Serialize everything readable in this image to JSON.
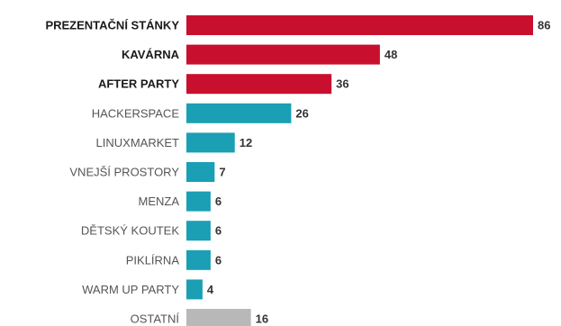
{
  "chart_data": {
    "type": "bar",
    "orientation": "horizontal",
    "title": "",
    "xlabel": "",
    "ylabel": "",
    "grid": false,
    "legend": "none",
    "xlim": [
      0,
      86
    ],
    "categories": [
      "PREZENTAČNÍ STÁNKY",
      "KAVÁRNA",
      "AFTER PARTY",
      "HACKERSPACE",
      "LINUXMARKET",
      "VNEJŠÍ PROSTORY",
      "MENZA",
      "DĚTSKÝ KOUTEK",
      "PIKLÍRNA",
      "WARM UP PARTY",
      "OSTATNÍ"
    ],
    "values": [
      86,
      48,
      36,
      26,
      12,
      7,
      6,
      6,
      6,
      4,
      16
    ],
    "emphasis": [
      true,
      true,
      true,
      false,
      false,
      false,
      false,
      false,
      false,
      false,
      false
    ],
    "bar_colors": [
      "#c8102e",
      "#c8102e",
      "#c8102e",
      "#1a9fb5",
      "#1a9fb5",
      "#1a9fb5",
      "#1a9fb5",
      "#1a9fb5",
      "#1a9fb5",
      "#1a9fb5",
      "#b8b8b8"
    ]
  }
}
